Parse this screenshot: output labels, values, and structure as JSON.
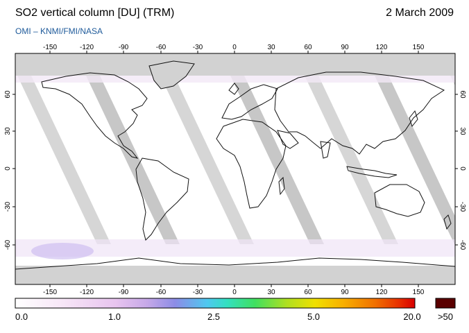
{
  "title": "SO2 vertical column [DU] (TRM)",
  "date": "2 March 2009",
  "credit": "OMI  –  KNMI/FMI/NASA",
  "longitude_ticks": [
    "-150",
    "-120",
    "-90",
    "-60",
    "-30",
    "0",
    "30",
    "60",
    "90",
    "120",
    "150"
  ],
  "latitude_ticks_left": [
    "60",
    "30",
    "0",
    "-30",
    "-60"
  ],
  "latitude_ticks_right": [
    "60",
    "30",
    "0",
    "-30",
    "-60"
  ],
  "colorbar": {
    "labels": [
      "0.0",
      "1.0",
      "2.5",
      "5.0",
      "20.0"
    ],
    "overflow_label": ">50",
    "colors": [
      "#ffffff",
      "#f7e6f7",
      "#e8c4ef",
      "#c6a8e8",
      "#8c8ce6",
      "#4fc8f0",
      "#33e0c0",
      "#40e060",
      "#b0e020",
      "#f0e000",
      "#f8b000",
      "#f07000",
      "#e83000",
      "#d80000"
    ],
    "overflow_color": "#5a0000",
    "no_data_color": "#d2d2d2"
  }
}
